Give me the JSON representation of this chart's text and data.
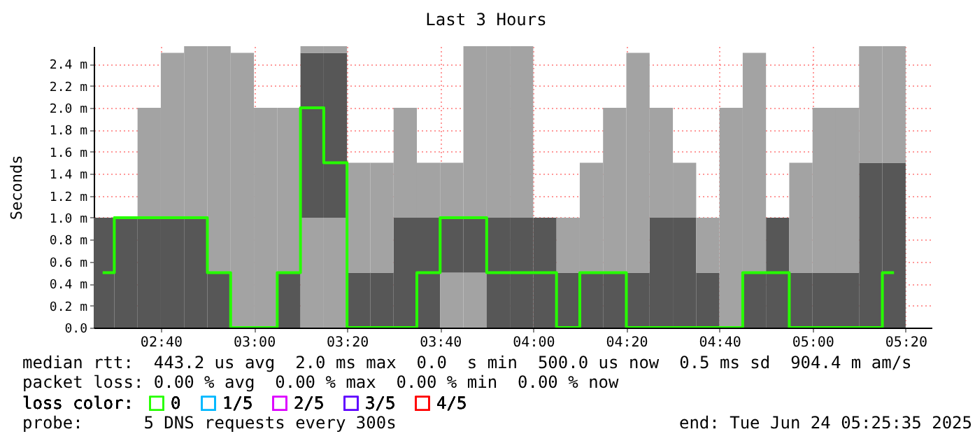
{
  "chart_data": {
    "type": "bar",
    "stacked": true,
    "title": "Last 3 Hours",
    "ylabel": "Seconds",
    "legend_title": "loss color:",
    "x": [
      2.4583,
      2.5417,
      2.625,
      2.7083,
      2.7917,
      2.875,
      2.9583,
      3.0417,
      3.125,
      3.2083,
      3.2917,
      3.375,
      3.4583,
      3.5417,
      3.625,
      3.7083,
      3.7917,
      3.875,
      3.9583,
      4.0417,
      4.125,
      4.2083,
      4.2917,
      4.375,
      4.4583,
      4.5417,
      4.625,
      4.7083,
      4.7917,
      4.875,
      4.9583,
      5.0417,
      5.125,
      5.2083,
      5.2917
    ],
    "xlim": [
      2.42639,
      5.42639
    ],
    "xticks": [
      {
        "value": 2.66667,
        "label": "02:40"
      },
      {
        "value": 3.0,
        "label": "03:00"
      },
      {
        "value": 3.33333,
        "label": "03:20"
      },
      {
        "value": 3.66667,
        "label": "03:40"
      },
      {
        "value": 4.0,
        "label": "04:00"
      },
      {
        "value": 4.33333,
        "label": "04:20"
      },
      {
        "value": 4.66667,
        "label": "04:40"
      },
      {
        "value": 5.0,
        "label": "05:00"
      },
      {
        "value": 5.33333,
        "label": "05:20"
      }
    ],
    "ylim": [
      0,
      2.56
    ],
    "yticks": [
      {
        "value": 0,
        "label": "0.0"
      },
      {
        "value": 0.2,
        "label": "0.2 m"
      },
      {
        "value": 0.4,
        "label": "0.4 m"
      },
      {
        "value": 0.6,
        "label": "0.6 m"
      },
      {
        "value": 0.8,
        "label": "0.8 m"
      },
      {
        "value": 1.0,
        "label": "1.0 m"
      },
      {
        "value": 1.2,
        "label": "1.2 m"
      },
      {
        "value": 1.4,
        "label": "1.4 m"
      },
      {
        "value": 1.6,
        "label": "1.6 m"
      },
      {
        "value": 1.8,
        "label": "1.8 m"
      },
      {
        "value": 2.0,
        "label": "2.0 m"
      },
      {
        "value": 2.2,
        "label": "2.2 m"
      },
      {
        "value": 2.4,
        "label": "2.4 m"
      }
    ],
    "series": [
      {
        "values": [
          1,
          1,
          1,
          1,
          1,
          0.5,
          2.5,
          2,
          0.5,
          1,
          1,
          0.5,
          0.5,
          1,
          1,
          0.5,
          0.5,
          1,
          1,
          1,
          0.5,
          0.5,
          0.5,
          0.5,
          1,
          1,
          0.5,
          2,
          0.5,
          1,
          0.5,
          0.5,
          0.5,
          1.5,
          1.5
        ],
        "colors": [
          "#575757",
          "#575757",
          "#575757",
          "#575757",
          "#575757",
          "#575757",
          "#a3a3a3",
          "#a3a3a3",
          "#575757",
          "#a3a3a3",
          "#a3a3a3",
          "#575757",
          "#575757",
          "#575757",
          "#575757",
          "#a3a3a3",
          "#a3a3a3",
          "#575757",
          "#575757",
          "#575757",
          "#575757",
          "#575757",
          "#575757",
          "#575757",
          "#575757",
          "#575757",
          "#575757",
          "#a3a3a3",
          "#575757",
          "#575757",
          "#575757",
          "#575757",
          "#575757",
          "#575757",
          "#575757"
        ]
      },
      {
        "values": [
          null,
          null,
          1,
          1.5,
          1.56,
          2.06,
          null,
          null,
          1.5,
          1.5,
          1.5,
          1,
          1,
          1,
          0.5,
          0.5,
          0.5,
          1.56,
          1.56,
          null,
          0.5,
          1,
          1.5,
          2,
          1,
          0.5,
          0.5,
          null,
          2,
          null,
          1,
          1.5,
          1.5,
          1.06,
          1.06
        ],
        "colors": [
          null,
          null,
          "#a3a3a3",
          "#a3a3a3",
          "#a3a3a3",
          "#a3a3a3",
          null,
          null,
          "#a3a3a3",
          "#575757",
          "#575757",
          "#a3a3a3",
          "#a3a3a3",
          "#a3a3a3",
          "#a3a3a3",
          "#575757",
          "#575757",
          "#a3a3a3",
          "#a3a3a3",
          null,
          "#a3a3a3",
          "#a3a3a3",
          "#a3a3a3",
          "#a3a3a3",
          "#a3a3a3",
          "#a3a3a3",
          "#a3a3a3",
          null,
          "#a3a3a3",
          null,
          "#a3a3a3",
          "#a3a3a3",
          "#a3a3a3",
          "#a3a3a3",
          "#a3a3a3"
        ]
      },
      {
        "values": [
          null,
          null,
          null,
          null,
          null,
          null,
          null,
          null,
          null,
          0.06,
          0.06,
          null,
          null,
          null,
          null,
          0.5,
          1.56,
          null,
          null,
          null,
          null,
          null,
          null,
          null,
          null,
          null,
          null,
          null,
          null,
          null,
          null,
          null,
          null,
          null,
          null
        ],
        "colors": [
          null,
          null,
          null,
          null,
          null,
          null,
          null,
          null,
          null,
          "#a3a3a3",
          "#a3a3a3",
          null,
          null,
          null,
          null,
          "#a3a3a3",
          "#a3a3a3",
          null,
          null,
          null,
          null,
          null,
          null,
          null,
          null,
          null,
          null,
          null,
          null,
          null,
          null,
          null,
          null,
          null,
          null
        ]
      },
      {
        "type": "step",
        "name": "0",
        "color": "#26ff00",
        "values": [
          0.5,
          1,
          1,
          1,
          1,
          0.5,
          0,
          0,
          0.5,
          2,
          1.5,
          0,
          0,
          0,
          0.5,
          1,
          1,
          0.5,
          0.5,
          0.5,
          0,
          0.5,
          0.5,
          0,
          0,
          0,
          0,
          0,
          0.5,
          0.5,
          0,
          0,
          0,
          0,
          0.5
        ]
      },
      {
        "type": "step",
        "name": "1/5",
        "color": "#00b8ff",
        "values": [
          null,
          null,
          null,
          null,
          null,
          null,
          null,
          null,
          null,
          null,
          null,
          null,
          null,
          null,
          null,
          null,
          null,
          null,
          null,
          null,
          null,
          null,
          null,
          null,
          null,
          null,
          null,
          null,
          null,
          null,
          null,
          null,
          null,
          null,
          null
        ]
      },
      {
        "type": "step",
        "name": "2/5",
        "color": "#dd00ff",
        "values": [
          null,
          null,
          null,
          null,
          null,
          null,
          null,
          null,
          null,
          null,
          null,
          null,
          null,
          null,
          null,
          null,
          null,
          null,
          null,
          null,
          null,
          null,
          null,
          null,
          null,
          null,
          null,
          null,
          null,
          null,
          null,
          null,
          null,
          null,
          null
        ]
      },
      {
        "type": "step",
        "name": "3/5",
        "color": "#5e00ff",
        "values": [
          null,
          null,
          null,
          null,
          null,
          null,
          null,
          null,
          null,
          null,
          null,
          null,
          null,
          null,
          null,
          null,
          null,
          null,
          null,
          null,
          null,
          null,
          null,
          null,
          null,
          null,
          null,
          null,
          null,
          null,
          null,
          null,
          null,
          null,
          null
        ]
      },
      {
        "type": "step",
        "name": "4/5",
        "color": "#ff0000",
        "values": [
          null,
          null,
          null,
          null,
          null,
          null,
          null,
          null,
          null,
          null,
          null,
          null,
          null,
          null,
          null,
          null,
          null,
          null,
          null,
          null,
          null,
          null,
          null,
          null,
          null,
          null,
          null,
          null,
          null,
          null,
          null,
          null,
          null,
          null,
          null
        ]
      }
    ],
    "grid": true,
    "legend": "bottom left",
    "annotations": [
      "median rtt:  443.2 us avg  2.0 ms max  0.0  s min  500.0 us now  0.5 ms sd  904.4 m am/s",
      "packet loss: 0.00 % avg  0.00 % max  0.00 % min  0.00 % now",
      "probe:      5 DNS requests every 300s",
      "end: Tue Jun 24 05:25:35 2025"
    ]
  }
}
